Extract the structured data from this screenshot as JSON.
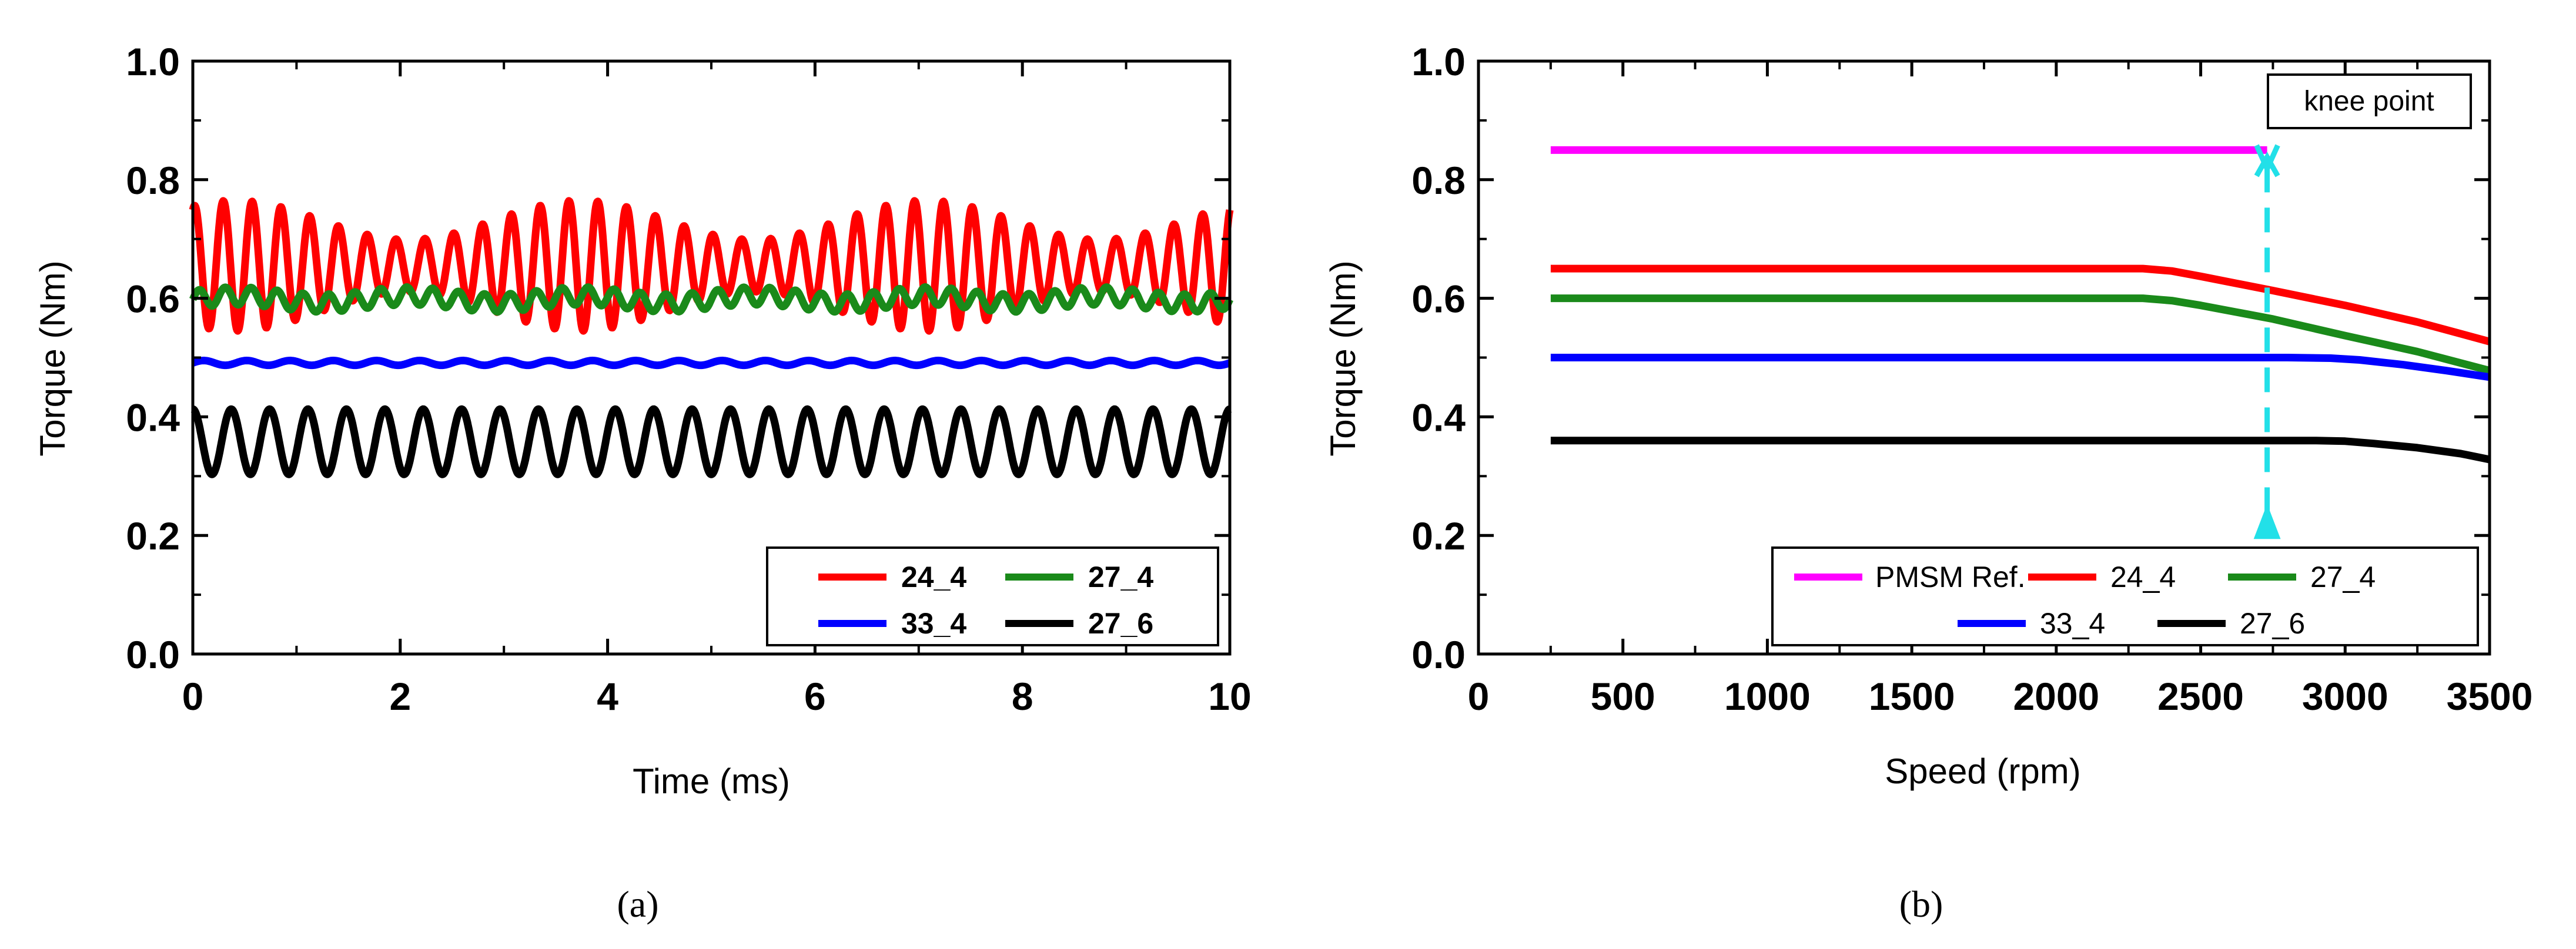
{
  "chart_data": [
    {
      "type": "line",
      "panel": "a",
      "caption": "(a)",
      "xlabel": "Time (ms)",
      "ylabel": "Torque (Nm)",
      "xlim": [
        0,
        10
      ],
      "ylim": [
        0.0,
        1.0
      ],
      "xticks": [
        "0",
        "2",
        "4",
        "6",
        "8",
        "10"
      ],
      "yticks": [
        "0.0",
        "0.2",
        "0.4",
        "0.6",
        "0.8",
        "1.0"
      ],
      "legend_position": "bottom-right",
      "series": [
        {
          "name": "24_4",
          "color": "#ff0000",
          "mean": 0.655,
          "ripple_amplitude": 0.11,
          "ripple_cycles": 36,
          "x_range": [
            0,
            10
          ]
        },
        {
          "name": "27_4",
          "color": "#1a8a1a",
          "mean": 0.598,
          "ripple_amplitude": 0.015,
          "ripple_cycles": 40,
          "x_range": [
            0,
            10
          ]
        },
        {
          "name": "33_4",
          "color": "#0000ff",
          "mean": 0.491,
          "ripple_amplitude": 0.004,
          "ripple_cycles": 24,
          "x_range": [
            0,
            10
          ]
        },
        {
          "name": "27_6",
          "color": "#000000",
          "mean": 0.358,
          "ripple_amplitude": 0.055,
          "ripple_cycles": 27,
          "x_range": [
            0,
            10
          ]
        }
      ]
    },
    {
      "type": "line",
      "panel": "b",
      "caption": "(b)",
      "xlabel": "Speed (rpm)",
      "ylabel": "Torque (Nm)",
      "xlim": [
        0,
        3500
      ],
      "ylim": [
        0.0,
        1.0
      ],
      "xticks": [
        "0",
        "500",
        "1000",
        "1500",
        "2000",
        "2500",
        "3000",
        "3500"
      ],
      "yticks": [
        "0.0",
        "0.2",
        "0.4",
        "0.6",
        "0.8",
        "1.0"
      ],
      "legend_position": "bottom-right",
      "annotation": {
        "label": "knee point",
        "x": 2730,
        "y_top": 0.85,
        "y_bottom": 0.2,
        "color": "#22e0e8"
      },
      "series": [
        {
          "name": "PMSM Ref.",
          "color": "#ff00ff",
          "x": [
            250,
            2730
          ],
          "y": [
            0.85,
            0.85
          ]
        },
        {
          "name": "24_4",
          "color": "#ff0000",
          "x": [
            250,
            2300,
            2400,
            2500,
            2750,
            3000,
            3250,
            3500
          ],
          "y": [
            0.65,
            0.65,
            0.646,
            0.637,
            0.613,
            0.588,
            0.56,
            0.527
          ]
        },
        {
          "name": "27_4",
          "color": "#1a8a1a",
          "x": [
            250,
            2300,
            2400,
            2500,
            2750,
            3000,
            3250,
            3500
          ],
          "y": [
            0.6,
            0.6,
            0.596,
            0.588,
            0.565,
            0.537,
            0.51,
            0.478
          ]
        },
        {
          "name": "33_4",
          "color": "#0000ff",
          "x": [
            250,
            2800,
            2950,
            3050,
            3200,
            3350,
            3500
          ],
          "y": [
            0.5,
            0.5,
            0.499,
            0.496,
            0.488,
            0.478,
            0.467
          ]
        },
        {
          "name": "27_6",
          "color": "#000000",
          "x": [
            250,
            2900,
            3000,
            3100,
            3250,
            3400,
            3500
          ],
          "y": [
            0.36,
            0.36,
            0.359,
            0.355,
            0.348,
            0.338,
            0.328
          ]
        }
      ]
    }
  ]
}
